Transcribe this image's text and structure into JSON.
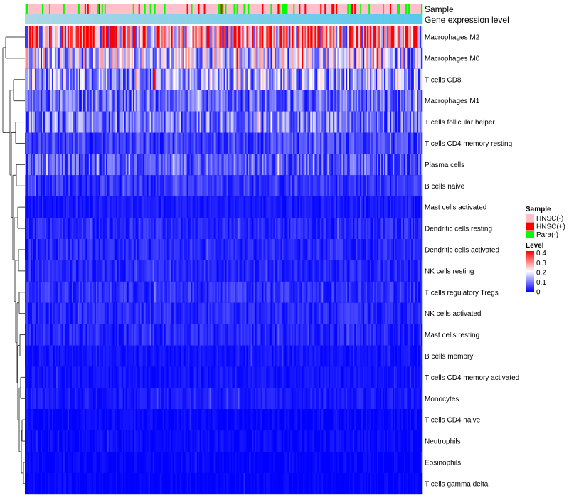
{
  "chart_data": {
    "type": "heatmap",
    "title": "",
    "column_annotations": [
      {
        "name": "Sample"
      },
      {
        "name": "Gene expression level"
      }
    ],
    "rows": [
      {
        "label": "Macrophages M2",
        "mean": 0.3
      },
      {
        "label": "Macrophages M0",
        "mean": 0.16
      },
      {
        "label": "T cells CD8",
        "mean": 0.13
      },
      {
        "label": "Macrophages M1",
        "mean": 0.08
      },
      {
        "label": "T cells follicular helper",
        "mean": 0.09
      },
      {
        "label": "T cells CD4 memory resting",
        "mean": 0.05
      },
      {
        "label": "Plasma cells",
        "mean": 0.07
      },
      {
        "label": "B cells naive",
        "mean": 0.04
      },
      {
        "label": "Mast cells activated",
        "mean": 0.02
      },
      {
        "label": "Dendritic cells resting",
        "mean": 0.03
      },
      {
        "label": "Dendritic cells activated",
        "mean": 0.03
      },
      {
        "label": "NK cells resting",
        "mean": 0.03
      },
      {
        "label": "T cells regulatory  Tregs",
        "mean": 0.035
      },
      {
        "label": "NK cells activated",
        "mean": 0.03
      },
      {
        "label": "Mast cells resting",
        "mean": 0.03
      },
      {
        "label": "B cells memory",
        "mean": 0.015
      },
      {
        "label": "T cells CD4 memory activated",
        "mean": 0.015
      },
      {
        "label": "Monocytes",
        "mean": 0.02
      },
      {
        "label": "T cells CD4 naive",
        "mean": 0.005
      },
      {
        "label": "Neutrophils",
        "mean": 0.008
      },
      {
        "label": "Eosinophils",
        "mean": 0.002
      },
      {
        "label": "T cells gamma delta",
        "mean": 0.001
      }
    ],
    "n_samples": 280,
    "legend": {
      "sample": {
        "title": "Sample",
        "items": [
          {
            "label": "HNSC(-)",
            "color": "#ffc0cb"
          },
          {
            "label": "HNSC(+)",
            "color": "#ff0000"
          },
          {
            "label": "Para(-)",
            "color": "#00ff00"
          }
        ]
      },
      "level": {
        "title": "Level",
        "ticks": [
          "0.4",
          "0.3",
          "0.2",
          "0.1",
          "0"
        ],
        "tick_values": [
          0.4,
          0.3,
          0.2,
          0.1,
          0
        ],
        "range": [
          0,
          0.42
        ],
        "colors": [
          "#0000ff",
          "#ffffff",
          "#ff0000"
        ]
      }
    },
    "annotation_colors": {
      "expression_start": "#add8e6",
      "expression_end": "#58c8ec"
    },
    "dendrogram": "left"
  }
}
